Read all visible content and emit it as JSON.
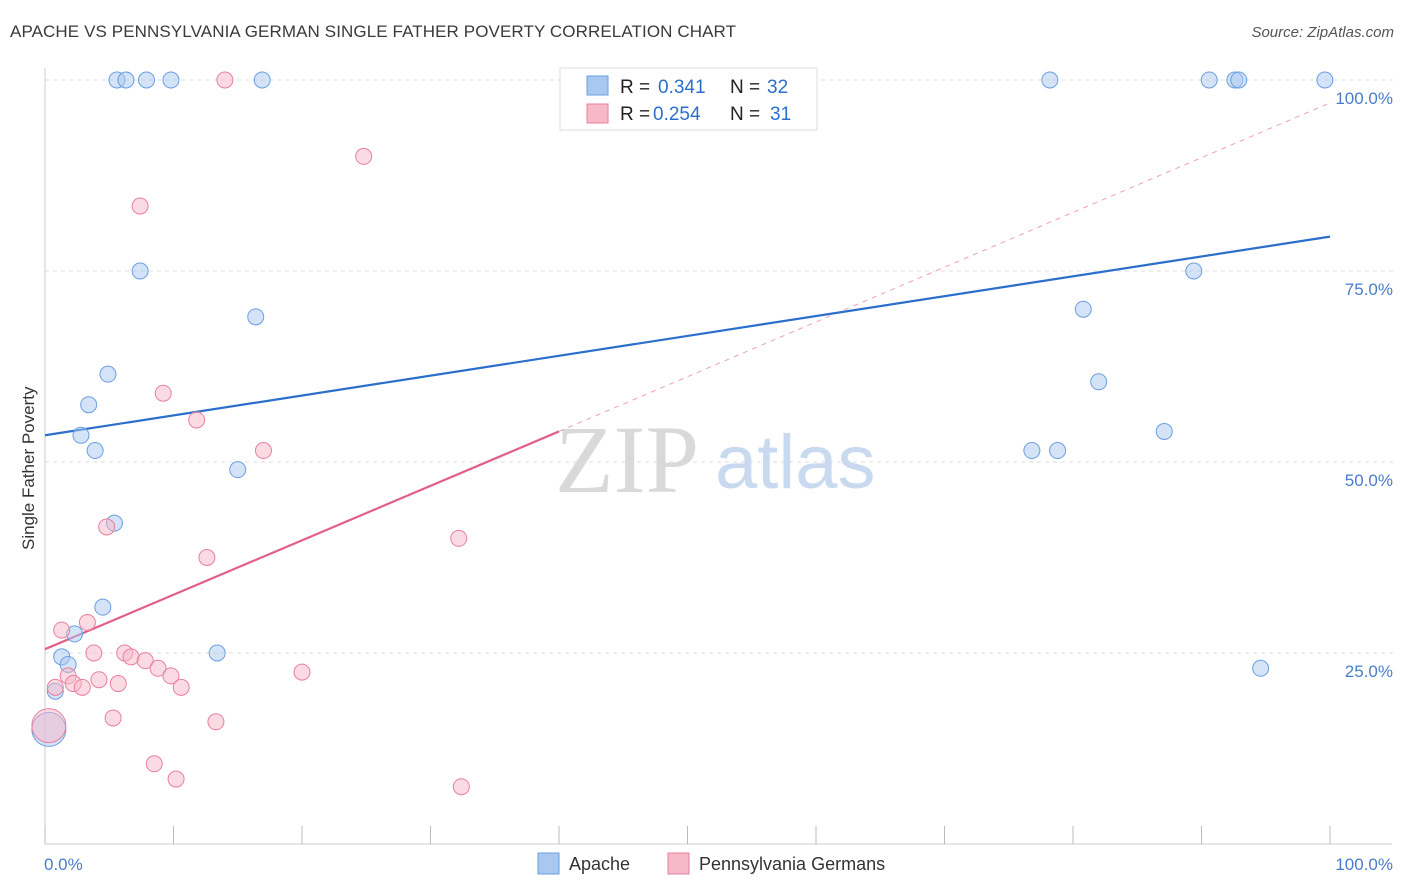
{
  "header": {
    "title": "APACHE VS PENNSYLVANIA GERMAN SINGLE FATHER POVERTY CORRELATION CHART",
    "source": "Source: ZipAtlas.com"
  },
  "watermark": {
    "zip": "ZIP",
    "atlas": "atlas"
  },
  "legend": {
    "r_label": "R =",
    "n_label": "N =",
    "entries": [
      {
        "r": "0.341",
        "n": "32",
        "color": "#a9c8f0"
      },
      {
        "r": "0.254",
        "n": "31",
        "color": "#f7b8c8"
      }
    ]
  },
  "chart_data": {
    "type": "scatter",
    "title": "APACHE VS PENNSYLVANIA GERMAN SINGLE FATHER POVERTY CORRELATION CHART",
    "xlabel": "",
    "ylabel": "Single Father Poverty",
    "xlim": [
      0,
      100
    ],
    "ylim": [
      0,
      105
    ],
    "x_tick_labels": [
      "0.0%",
      "100.0%"
    ],
    "y_ticks": [
      25,
      50,
      75,
      100
    ],
    "y_tick_labels": [
      "25.0%",
      "50.0%",
      "75.0%",
      "100.0%"
    ],
    "series": [
      {
        "name": "Apache",
        "color": "#a9c8f0",
        "stroke": "#6a9fe0",
        "trend_color": "#2b6fcc",
        "trend": {
          "x0": 0,
          "y0": 53.5,
          "x1": 100,
          "y1": 79.5
        },
        "points": [
          [
            0.3,
            15.0,
            "big"
          ],
          [
            0.8,
            20.0
          ],
          [
            1.3,
            24.5
          ],
          [
            1.8,
            23.5
          ],
          [
            2.3,
            27.5
          ],
          [
            2.8,
            53.5
          ],
          [
            3.4,
            57.5
          ],
          [
            3.9,
            51.5
          ],
          [
            4.5,
            31.0
          ],
          [
            4.9,
            61.5
          ],
          [
            5.4,
            42.0
          ],
          [
            5.6,
            100.0
          ],
          [
            6.3,
            100.0
          ],
          [
            7.4,
            75.0
          ],
          [
            7.9,
            100.0
          ],
          [
            9.8,
            100.0
          ],
          [
            13.4,
            25.0
          ],
          [
            15.0,
            49.0
          ],
          [
            16.4,
            69.0
          ],
          [
            16.9,
            100.0
          ],
          [
            76.8,
            51.5
          ],
          [
            78.2,
            100.0
          ],
          [
            78.8,
            51.5
          ],
          [
            80.8,
            70.0
          ],
          [
            82.0,
            60.5
          ],
          [
            87.1,
            54.0
          ],
          [
            89.4,
            75.0
          ],
          [
            90.6,
            100.0
          ],
          [
            92.6,
            100.0
          ],
          [
            92.9,
            100.0
          ],
          [
            94.6,
            23.0
          ],
          [
            99.6,
            100.0
          ]
        ]
      },
      {
        "name": "Pennsylvania Germans",
        "color": "#f7b8c8",
        "stroke": "#e87fa0",
        "trend_color": "#e0608a",
        "trend": {
          "x0": 0,
          "y0": 25.5,
          "x1": 40,
          "y1": 54.0
        },
        "trend_extension": {
          "x0": 40,
          "y0": 54.0,
          "x1": 100,
          "y1": 97.0
        },
        "points": [
          [
            0.3,
            15.5,
            "big"
          ],
          [
            0.8,
            20.5
          ],
          [
            1.3,
            28.0
          ],
          [
            1.8,
            22.0
          ],
          [
            2.2,
            21.0
          ],
          [
            2.9,
            20.5
          ],
          [
            3.3,
            29.0
          ],
          [
            3.8,
            25.0
          ],
          [
            4.2,
            21.5
          ],
          [
            4.8,
            41.5
          ],
          [
            5.3,
            16.5
          ],
          [
            5.7,
            21.0
          ],
          [
            6.2,
            25.0
          ],
          [
            6.7,
            24.5
          ],
          [
            7.4,
            83.5
          ],
          [
            7.8,
            24.0
          ],
          [
            8.5,
            10.5
          ],
          [
            8.8,
            23.0
          ],
          [
            9.2,
            59.0
          ],
          [
            9.8,
            22.0
          ],
          [
            10.2,
            8.5
          ],
          [
            10.6,
            20.5
          ],
          [
            11.8,
            55.5
          ],
          [
            12.6,
            37.5
          ],
          [
            13.3,
            16.0
          ],
          [
            14.0,
            100.0
          ],
          [
            17.0,
            51.5
          ],
          [
            20.0,
            22.5
          ],
          [
            24.8,
            90.0
          ],
          [
            32.2,
            40.0
          ],
          [
            32.4,
            7.5
          ]
        ]
      }
    ]
  }
}
